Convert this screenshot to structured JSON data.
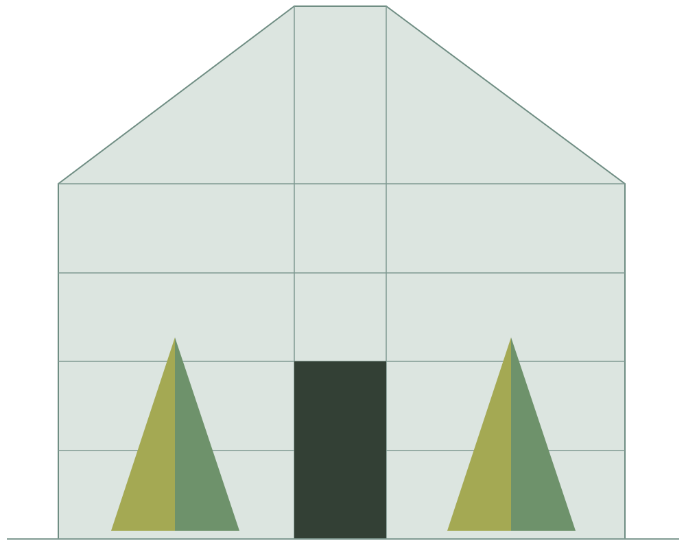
{
  "colors": {
    "background": "#ffffff",
    "facade_fill": "#dce5e0",
    "facade_stroke": "#6f8d83",
    "grid_line": "#7f9a91",
    "ground_line": "#7f9a91",
    "door": "#334035",
    "tree_light_half": "#a4a953",
    "tree_dark_half": "#6e926b"
  },
  "icons": {
    "building": "house-facade-icon",
    "door": "door-icon",
    "tree": "cypress-tree-icon"
  }
}
